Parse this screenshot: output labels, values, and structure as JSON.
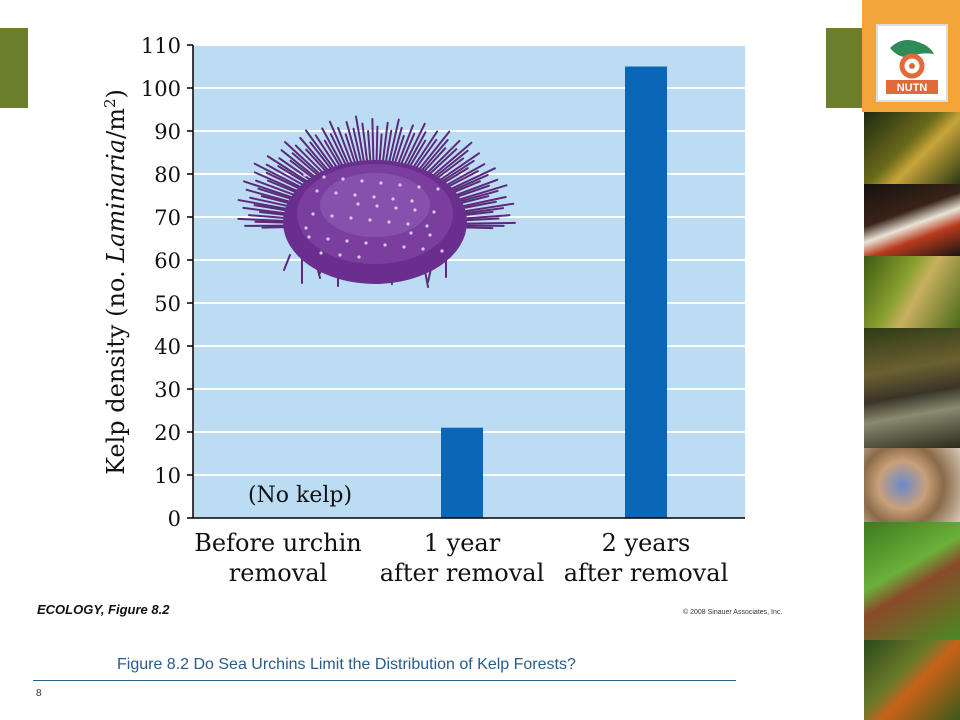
{
  "chart_data": {
    "type": "bar",
    "categories": [
      [
        "Before urchin",
        "removal"
      ],
      [
        "1 year",
        "after removal"
      ],
      [
        "2 years",
        "after removal"
      ]
    ],
    "values": [
      0,
      21,
      105
    ],
    "ylabel_prefix": "Kelp density (no. ",
    "ylabel_italic": "Laminaria",
    "ylabel_suffix": "/m",
    "ylabel_sup": "2",
    "ylabel_close": ")",
    "ylim": [
      0,
      110
    ],
    "yticks": [
      0,
      10,
      20,
      30,
      40,
      50,
      60,
      70,
      80,
      90,
      100,
      110
    ],
    "annotation": "(No kelp)",
    "grid": true,
    "colors": {
      "plot_bg": "#bcdcf4",
      "bar": "#0a67b8",
      "grid": "#ffffff"
    }
  },
  "credits": {
    "left": "ECOLOGY, Figure 8.2",
    "right": "© 2008 Sinauer Associates, Inc."
  },
  "caption": "Figure 8.2  Do Sea Urchins Limit the Distribution of Kelp Forests?",
  "page_number": "8",
  "logo_text": "NUTN",
  "icons": {
    "urchin": "sea-urchin-illustration",
    "logo": "nutn-logo"
  },
  "colors": {
    "accent": "#6b7f2a",
    "caption": "#2a5c8a",
    "logo_bg": "#f3a53a"
  }
}
